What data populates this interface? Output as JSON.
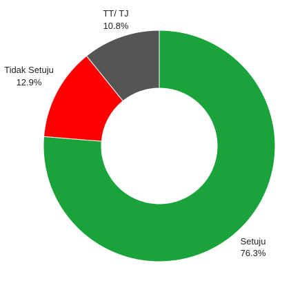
{
  "chart_data": {
    "type": "pie",
    "donut": true,
    "legend": "none",
    "slices": [
      {
        "label": "Setuju",
        "value_label": "76.3%",
        "value": 76.3,
        "color": "#1aa33a"
      },
      {
        "label": "Tidak Setuju",
        "value_label": "12.9%",
        "value": 12.9,
        "color": "#ff0000"
      },
      {
        "label": "TT/ TJ",
        "value_label": "10.8%",
        "value": 10.8,
        "color": "#555555"
      }
    ]
  }
}
